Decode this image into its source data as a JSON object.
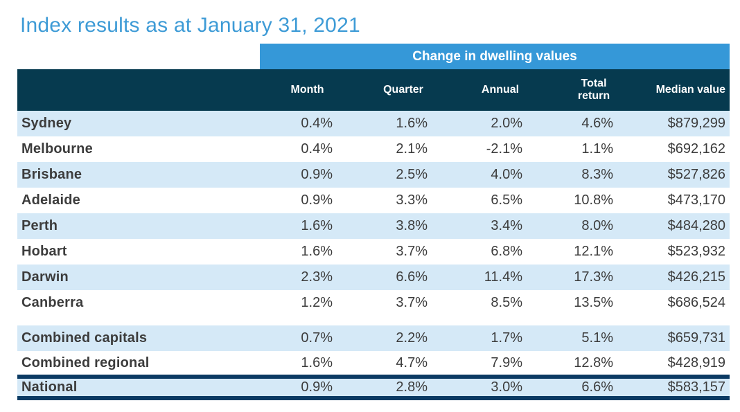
{
  "title": "Index results as at January 31, 2021",
  "table": {
    "banner": "Change in dwelling values",
    "columns": [
      "Month",
      "Quarter",
      "Annual",
      "Total return",
      "Median value"
    ],
    "rows": [
      {
        "label": "Sydney",
        "month": "0.4%",
        "quarter": "1.6%",
        "annual": "2.0%",
        "total_return": "4.6%",
        "median_value": "$879,299"
      },
      {
        "label": "Melbourne",
        "month": "0.4%",
        "quarter": "2.1%",
        "annual": "-2.1%",
        "total_return": "1.1%",
        "median_value": "$692,162"
      },
      {
        "label": "Brisbane",
        "month": "0.9%",
        "quarter": "2.5%",
        "annual": "4.0%",
        "total_return": "8.3%",
        "median_value": "$527,826"
      },
      {
        "label": "Adelaide",
        "month": "0.9%",
        "quarter": "3.3%",
        "annual": "6.5%",
        "total_return": "10.8%",
        "median_value": "$473,170"
      },
      {
        "label": "Perth",
        "month": "1.6%",
        "quarter": "3.8%",
        "annual": "3.4%",
        "total_return": "8.0%",
        "median_value": "$484,280"
      },
      {
        "label": "Hobart",
        "month": "1.6%",
        "quarter": "3.7%",
        "annual": "6.8%",
        "total_return": "12.1%",
        "median_value": "$523,932"
      },
      {
        "label": "Darwin",
        "month": "2.3%",
        "quarter": "6.6%",
        "annual": "11.4%",
        "total_return": "17.3%",
        "median_value": "$426,215"
      },
      {
        "label": "Canberra",
        "month": "1.2%",
        "quarter": "3.7%",
        "annual": "8.5%",
        "total_return": "13.5%",
        "median_value": "$686,524"
      },
      {
        "label": "Combined capitals",
        "month": "0.7%",
        "quarter": "2.2%",
        "annual": "1.7%",
        "total_return": "5.1%",
        "median_value": "$659,731"
      },
      {
        "label": "Combined regional",
        "month": "1.6%",
        "quarter": "4.7%",
        "annual": "7.9%",
        "total_return": "12.8%",
        "median_value": "$428,919"
      },
      {
        "label": "National",
        "month": "0.9%",
        "quarter": "2.8%",
        "annual": "3.0%",
        "total_return": "6.6%",
        "median_value": "$583,157"
      }
    ]
  },
  "colors": {
    "title_blue": "#3e9bd6",
    "banner_blue": "#3598d8",
    "header_navy": "#063a4f",
    "row_light_blue": "#d5e9f7",
    "border_navy": "#0b3a63",
    "text_dark": "#3c3c3c"
  }
}
